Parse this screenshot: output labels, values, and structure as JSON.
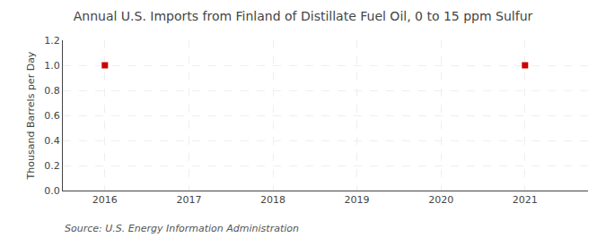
{
  "chart_data": {
    "type": "scatter",
    "title": "Annual U.S. Imports from Finland of Distillate Fuel Oil, 0 to 15 ppm Sulfur",
    "ylabel": "Thousand Barrels per Day",
    "annotations": [
      "Source: U.S. Energy Information Administration"
    ],
    "x": [
      2016,
      2021
    ],
    "values": [
      1.0,
      1.0
    ],
    "color": "#cc0000",
    "marker": "square",
    "xlim": [
      2015.5,
      2021.75
    ],
    "xticks": [
      2016,
      2017,
      2018,
      2019,
      2020,
      2021
    ],
    "ylim": [
      0.0,
      1.2
    ],
    "yticks": [
      {
        "value": 0.0,
        "label": "0.0"
      },
      0.2,
      0.4,
      0.6,
      0.8,
      {
        "value": 1.0,
        "label": "1.0"
      },
      1.2
    ],
    "grid": true
  }
}
